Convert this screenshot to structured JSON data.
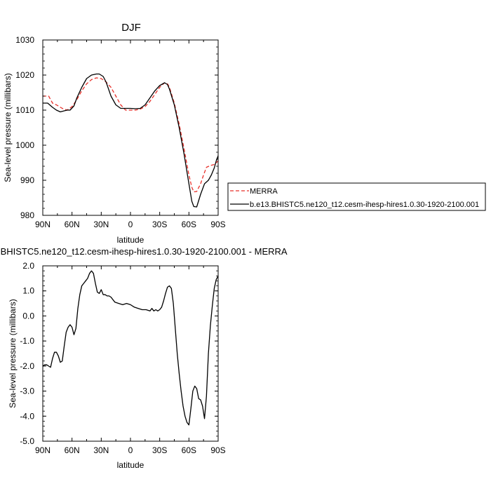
{
  "chart_data": [
    {
      "type": "line",
      "title": "DJF",
      "xlabel": "latitude",
      "ylabel": "Sea-level pressure (millibars)",
      "xlim": [
        90,
        -90
      ],
      "ylim": [
        980,
        1030
      ],
      "x_ticks": [
        90,
        60,
        30,
        0,
        -30,
        -60,
        -90
      ],
      "x_tick_labels": [
        "90N",
        "60N",
        "30N",
        "0",
        "30S",
        "60S",
        "90S"
      ],
      "y_ticks": [
        980,
        990,
        1000,
        1010,
        1020,
        1030
      ],
      "y_tick_labels": [
        "980",
        "990",
        "1000",
        "1010",
        "1020",
        "1030"
      ],
      "grid": false,
      "legend_position": "right",
      "series": [
        {
          "name": "MERRA",
          "color": "#e8302a",
          "dash": "dashed",
          "x": [
            90,
            84,
            80,
            76,
            70,
            65,
            60,
            55,
            50,
            45,
            40,
            35,
            30,
            25,
            20,
            15,
            10,
            5,
            0,
            -5,
            -10,
            -15,
            -20,
            -25,
            -30,
            -35,
            -38,
            -40,
            -45,
            -50,
            -55,
            -60,
            -63,
            -65,
            -68,
            -72,
            -75,
            -78,
            -82,
            -86,
            -90
          ],
          "values": [
            1014,
            1014,
            1012,
            1011.5,
            1010.5,
            1010,
            1011,
            1013,
            1015.5,
            1017.5,
            1018.7,
            1019.2,
            1019,
            1018,
            1016.5,
            1014,
            1011.5,
            1010,
            1010,
            1010,
            1010.3,
            1011,
            1012.5,
            1014.5,
            1016.5,
            1017.8,
            1017.5,
            1016.5,
            1012,
            1006,
            999,
            991.5,
            988,
            986.7,
            986.8,
            989,
            991.5,
            993.7,
            994.2,
            994.5,
            995.5
          ]
        },
        {
          "name": "b.e13.BHISTC5.ne120_t12.cesm-ihesp-hires1.0.30-1920-2100.001",
          "color": "#000000",
          "dash": "solid",
          "x": [
            90,
            85,
            80,
            76,
            72,
            68,
            65,
            62,
            58,
            55,
            50,
            45,
            40,
            35,
            32,
            28,
            25,
            20,
            15,
            10,
            5,
            0,
            -5,
            -10,
            -15,
            -20,
            -25,
            -30,
            -35,
            -38,
            -40,
            -45,
            -50,
            -55,
            -60,
            -63,
            -65,
            -68,
            -72,
            -76,
            -80,
            -83,
            -86,
            -88,
            -90
          ],
          "values": [
            1012,
            1012,
            1010.8,
            1010,
            1009.5,
            1009.8,
            1010,
            1010,
            1011.2,
            1013.5,
            1016.5,
            1019,
            1020,
            1020.3,
            1020.3,
            1019.6,
            1018,
            1014,
            1011.5,
            1010.5,
            1010.5,
            1010.5,
            1010.4,
            1010.5,
            1011.5,
            1013.5,
            1015.5,
            1017,
            1017.8,
            1017.3,
            1016,
            1011.5,
            1005,
            997.5,
            989,
            984,
            982.5,
            982.4,
            986,
            989,
            990,
            991.5,
            993.5,
            995.5,
            997
          ]
        }
      ]
    },
    {
      "type": "line",
      "title": "b.e13.BHISTC5.ne120_t12.cesm-ihesp-hires1.0.30-1920-2100.001 - MERRA",
      "xlabel": "latitude",
      "ylabel": "Sea-level pressure (millibars)",
      "xlim": [
        90,
        -90
      ],
      "ylim": [
        -5.0,
        2.0
      ],
      "x_ticks": [
        90,
        60,
        30,
        0,
        -30,
        -60,
        -90
      ],
      "x_tick_labels": [
        "90N",
        "60N",
        "30N",
        "0",
        "30S",
        "60S",
        "90S"
      ],
      "y_ticks": [
        -5,
        -4,
        -3,
        -2,
        -1,
        0,
        1,
        2
      ],
      "y_tick_labels": [
        "-5.0",
        "-4.0",
        "-3.0",
        "-2.0",
        "-1.0",
        "0.0",
        "1.0",
        "2.0"
      ],
      "grid": false,
      "series": [
        {
          "color": "#000000",
          "x": [
            90,
            88,
            86,
            84,
            82,
            80,
            78,
            76,
            74,
            72,
            70,
            68,
            66,
            64,
            62,
            60,
            58,
            56,
            54,
            52,
            50,
            48,
            46,
            44,
            42,
            40,
            38,
            36,
            34,
            32,
            30,
            28,
            26,
            24,
            22,
            20,
            16,
            12,
            8,
            4,
            0,
            -4,
            -8,
            -12,
            -16,
            -20,
            -22,
            -24,
            -26,
            -28,
            -30,
            -32,
            -34,
            -36,
            -38,
            -40,
            -42,
            -44,
            -46,
            -48,
            -50,
            -52,
            -54,
            -56,
            -58,
            -60,
            -62,
            -64,
            -66,
            -68,
            -70,
            -72,
            -74,
            -76,
            -78,
            -80,
            -82,
            -84,
            -86,
            -88,
            -90
          ],
          "values": [
            -2.0,
            -1.95,
            -1.95,
            -2.0,
            -2.05,
            -1.7,
            -1.45,
            -1.45,
            -1.6,
            -1.85,
            -1.8,
            -1.2,
            -0.65,
            -0.45,
            -0.35,
            -0.45,
            -0.75,
            -0.5,
            0.3,
            0.85,
            1.2,
            1.3,
            1.4,
            1.5,
            1.7,
            1.8,
            1.7,
            1.3,
            0.95,
            0.9,
            1.05,
            0.85,
            0.85,
            0.8,
            0.8,
            0.75,
            0.55,
            0.5,
            0.45,
            0.5,
            0.45,
            0.35,
            0.3,
            0.25,
            0.25,
            0.2,
            0.3,
            0.2,
            0.25,
            0.2,
            0.25,
            0.35,
            0.6,
            0.9,
            1.15,
            1.2,
            1.1,
            0.5,
            -0.5,
            -1.5,
            -2.3,
            -3.0,
            -3.6,
            -4.0,
            -4.25,
            -4.35,
            -3.7,
            -3.0,
            -2.8,
            -2.9,
            -3.3,
            -3.35,
            -3.6,
            -4.1,
            -3.2,
            -1.5,
            -0.4,
            0.4,
            1.1,
            1.45,
            1.6
          ]
        }
      ]
    }
  ]
}
